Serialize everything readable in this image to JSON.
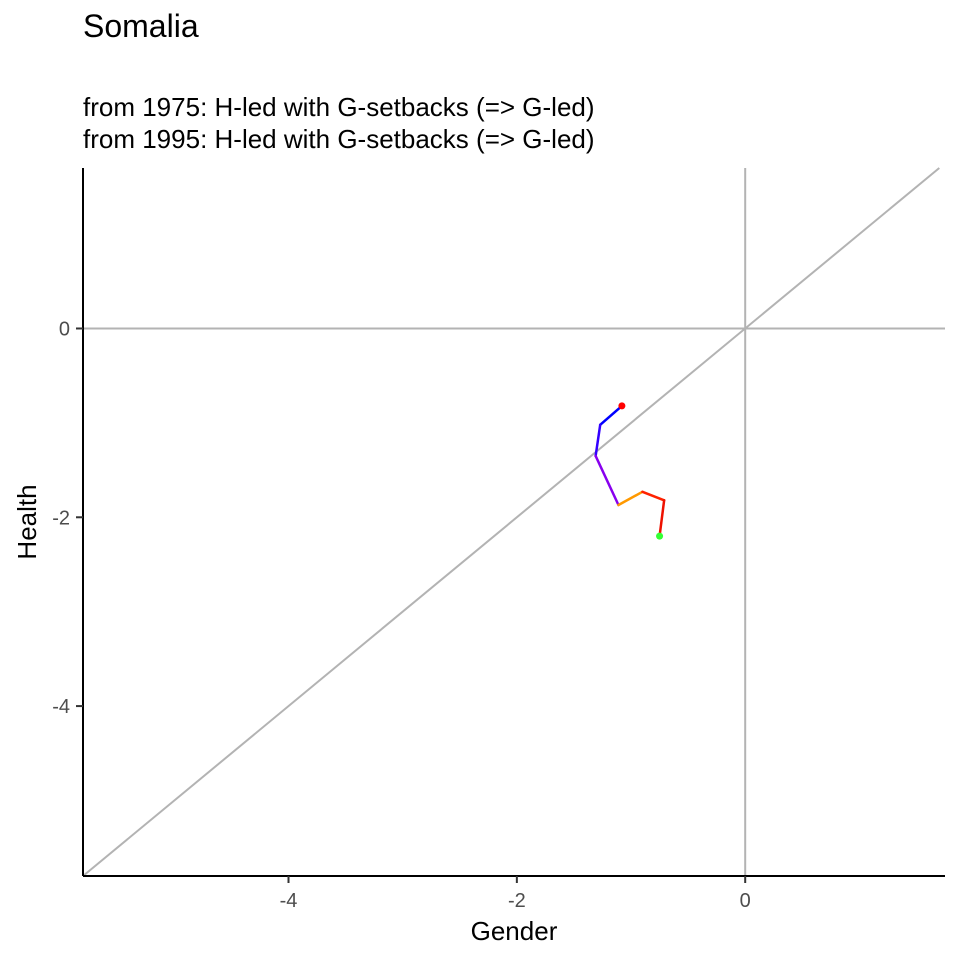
{
  "chart_data": {
    "type": "line",
    "title": "Somalia",
    "subtitle_lines": [
      "from 1975:  H-led with G-setbacks (=> G-led)",
      "from 1995:  H-led with G-setbacks (=> G-led)"
    ],
    "xlabel": "Gender",
    "ylabel": "Health",
    "xlim": [
      -5.8,
      1.75
    ],
    "ylim": [
      -5.8,
      1.7
    ],
    "x_ticks": [
      -4,
      -2,
      0
    ],
    "y_ticks": [
      0,
      -2,
      -4
    ],
    "grid": false,
    "reference_lines": [
      {
        "kind": "hline",
        "value": 0,
        "color": "#b3b3b3"
      },
      {
        "kind": "vline",
        "value": 0,
        "color": "#b3b3b3"
      },
      {
        "kind": "diagonal",
        "slope": 1,
        "intercept": 0,
        "color": "#b3b3b3"
      }
    ],
    "path": [
      {
        "x": -1.08,
        "y": -0.82
      },
      {
        "x": -1.27,
        "y": -1.02
      },
      {
        "x": -1.31,
        "y": -1.35
      },
      {
        "x": -1.11,
        "y": -1.87
      },
      {
        "x": -0.9,
        "y": -1.73
      },
      {
        "x": -0.71,
        "y": -1.82
      },
      {
        "x": -0.75,
        "y": -2.2
      }
    ],
    "segment_colors": [
      "#0000ff",
      "#3300ff",
      "#8800ee",
      "#ff9900",
      "#ff2200",
      "#ee1100"
    ],
    "start_point": {
      "x": -1.08,
      "y": -0.82,
      "color": "#ff0000"
    },
    "end_point": {
      "x": -0.75,
      "y": -2.2,
      "color": "#33ff33"
    }
  }
}
